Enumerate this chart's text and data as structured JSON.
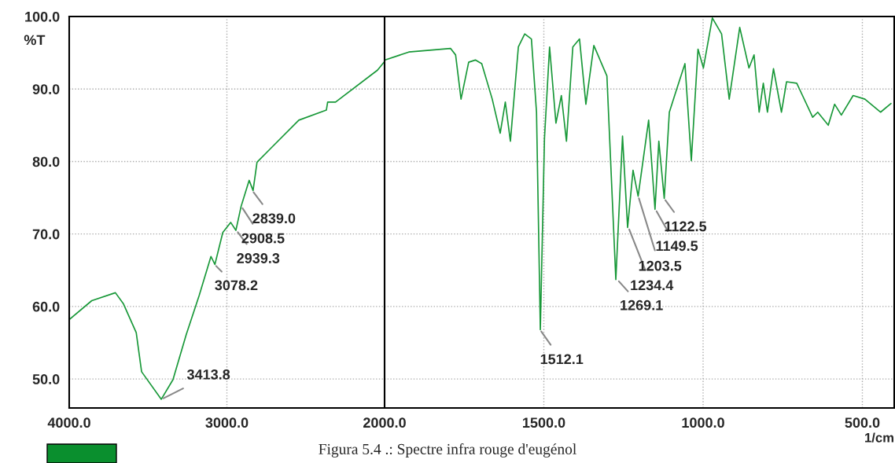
{
  "chart_data": [
    {
      "type": "line",
      "ylabel": "%T",
      "xlim": [
        4000,
        2000
      ],
      "ylim": [
        46,
        100
      ],
      "xticks": [
        {
          "value": 4000,
          "label": "4000.0"
        },
        {
          "value": 3000,
          "label": "3000.0"
        },
        {
          "value": 2000,
          "label": "2000.0"
        }
      ],
      "yticks": [
        {
          "value": 50,
          "label": "50.0"
        },
        {
          "value": 60,
          "label": "60.0"
        },
        {
          "value": 70,
          "label": "70.0"
        },
        {
          "value": 80,
          "label": "80.0"
        },
        {
          "value": 90,
          "label": "90.0"
        },
        {
          "value": 100,
          "label": "100.0"
        }
      ],
      "grid": true,
      "series": [
        {
          "color": "#189838",
          "x": [
            4000,
            3857,
            3707,
            3657,
            3575,
            3541,
            3416,
            3342,
            3258,
            3176,
            3101,
            3076,
            3026,
            2976,
            2943,
            2910,
            2859,
            2834,
            2809,
            2727,
            2544,
            2369,
            2361,
            2311,
            2045,
            2000
          ],
          "values": [
            58.2,
            60.8,
            61.9,
            60.4,
            56.4,
            51.0,
            47.2,
            49.9,
            56.1,
            61.5,
            66.9,
            65.8,
            70.2,
            71.6,
            70.5,
            73.8,
            77.4,
            76.0,
            79.9,
            81.7,
            85.7,
            87.1,
            88.2,
            88.2,
            92.6,
            93.8
          ]
        }
      ],
      "annotations": [
        {
          "text": "3413.8",
          "x": 3413.8,
          "y": 47.2
        },
        {
          "text": "3078.2",
          "x": 3078.2,
          "y": 65.8
        },
        {
          "text": "2939.3",
          "x": 2939.3,
          "y": 70.5
        },
        {
          "text": "2908.5",
          "x": 2908.5,
          "y": 73.8
        },
        {
          "text": "2839.0",
          "x": 2839.0,
          "y": 76.0
        },
        "Figura 5.4 .: Spectre infra rouge d'eugénol"
      ]
    },
    {
      "type": "line",
      "xlabel": "1/cm",
      "xlim": [
        2000,
        400
      ],
      "ylim": [
        46,
        100
      ],
      "xticks": [
        {
          "value": 1500,
          "label": "1500.0"
        },
        {
          "value": 1000,
          "label": "1000.0"
        },
        {
          "value": 500,
          "label": "500.0"
        }
      ],
      "yticks": [
        50,
        60,
        70,
        80,
        90,
        100
      ],
      "tick_labels": "x",
      "grid": true,
      "series": [
        {
          "color": "#189838",
          "x": [
            1998,
            1924,
            1793,
            1777,
            1760,
            1736,
            1715,
            1695,
            1662,
            1637,
            1621,
            1605,
            1580,
            1560,
            1539,
            1523,
            1511,
            1498,
            1482,
            1462,
            1445,
            1429,
            1409,
            1388,
            1368,
            1343,
            1302,
            1274,
            1253,
            1237,
            1220,
            1204,
            1171,
            1151,
            1139,
            1122,
            1106,
            1085,
            1057,
            1037,
            1016,
            999,
            971,
            942,
            918,
            885,
            856,
            840,
            824,
            811,
            798,
            779,
            754,
            738,
            706,
            656,
            640,
            607,
            587,
            566,
            529,
            492,
            443,
            410
          ],
          "values": [
            94.0,
            95.1,
            95.6,
            94.7,
            88.6,
            93.7,
            94.0,
            93.5,
            88.6,
            83.9,
            88.2,
            82.8,
            95.8,
            97.6,
            96.9,
            86.8,
            56.8,
            83.2,
            95.8,
            85.3,
            89.1,
            82.8,
            95.8,
            96.9,
            87.9,
            96.0,
            91.8,
            63.7,
            83.5,
            70.9,
            78.8,
            75.2,
            85.7,
            73.4,
            82.8,
            74.9,
            86.8,
            89.7,
            93.5,
            80.1,
            95.5,
            92.9,
            99.8,
            97.6,
            88.6,
            98.5,
            92.9,
            94.7,
            86.8,
            90.8,
            86.8,
            92.8,
            86.8,
            91.0,
            90.8,
            86.1,
            86.8,
            85.0,
            87.9,
            86.4,
            89.1,
            88.6,
            86.8,
            88.0
          ]
        }
      ],
      "annotations": [
        {
          "text": "1512.1",
          "x": 1512.1,
          "y": 56.8
        },
        {
          "text": "1269.1",
          "x": 1269.1,
          "y": 63.7
        },
        {
          "text": "1234.4",
          "x": 1234.4,
          "y": 70.9
        },
        {
          "text": "1203.5",
          "x": 1203.5,
          "y": 75.2
        },
        {
          "text": "1149.5",
          "x": 1149.5,
          "y": 73.4
        },
        {
          "text": "1122.5",
          "x": 1122.5,
          "y": 74.9
        }
      ]
    }
  ]
}
